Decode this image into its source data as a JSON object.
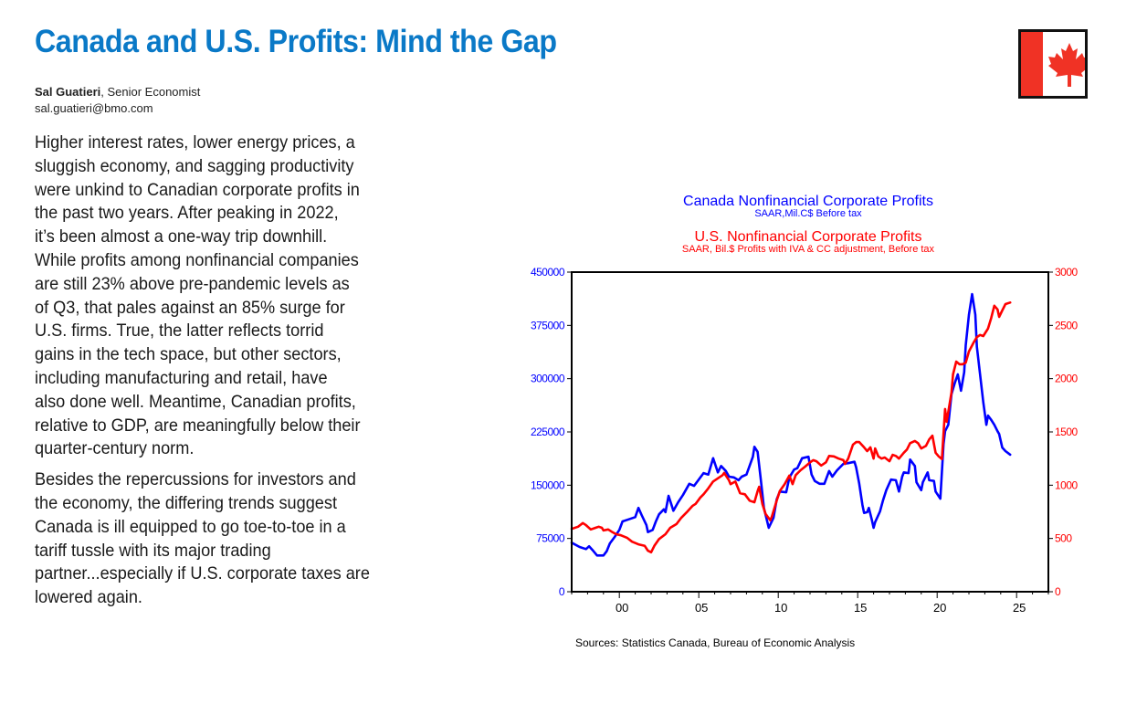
{
  "article": {
    "title": "Canada and U.S. Profits: Mind the Gap",
    "author_name": "Sal Guatieri",
    "author_role": ", Senior Economist",
    "author_email": "sal.guatieri@bmo.com",
    "flag_icon": "canada-flag-icon",
    "paragraphs": [
      [
        "Higher interest rates, lower energy prices, a",
        "sluggish economy, and sagging productivity",
        "were unkind to Canadian corporate profits in",
        "the past two years. After peaking in 2022,",
        "it’s been almost a one-way trip downhill.",
        "While profits among nonfinancial companies",
        "are still 23% above pre-pandemic levels as",
        "of Q3, that pales against an 85% surge for",
        "U.S. firms. True, the latter reflects torrid",
        "gains in the tech space, but other sectors,",
        "including manufacturing and retail, have",
        "also done well. Meantime, Canadian profits,",
        "relative to GDP, are meaningfully below their",
        "quarter-century norm."
      ],
      [
        "Besides the repercussions for investors and",
        "the economy, the differing trends suggest",
        "Canada is ill equipped to go toe-to-toe in a",
        "tariff tussle with its major trading",
        "partner...especially if U.S. corporate taxes are",
        "lowered again."
      ]
    ]
  },
  "chart_data": {
    "type": "line",
    "title": "Canada Nonfinancial Corporate Profits",
    "subtitle": "SAAR,Mil.C$  Before tax",
    "title2": "U.S. Nonfinancial Corporate Profits",
    "subtitle2": "SAAR, Bil.$  Profits with IVA & CC adjustment, Before tax",
    "source": "Sources:  Statistics Canada, Bureau of Economic Analysis",
    "xlim": [
      1997,
      2027
    ],
    "x_ticks": [
      2000,
      2005,
      2010,
      2015,
      2020,
      2025
    ],
    "x_tick_labels": [
      "00",
      "05",
      "10",
      "15",
      "20",
      "25"
    ],
    "y_left": {
      "range": [
        0,
        450000
      ],
      "ticks": [
        0,
        75000,
        150000,
        225000,
        300000,
        375000,
        450000
      ],
      "color": "#0000ff"
    },
    "y_right": {
      "range": [
        0,
        3000
      ],
      "ticks": [
        0,
        500,
        1000,
        1500,
        2000,
        2500,
        3000
      ],
      "color": "#ff0000"
    },
    "grid": false,
    "series": [
      {
        "name": "Canada Nonfinancial Corporate Profits",
        "axis": "left",
        "color": "#0000ff",
        "x": [
          1997.0,
          1997.5,
          1997.9,
          1998.1,
          1998.3,
          1998.6,
          1999.0,
          1999.2,
          1999.4,
          1999.7,
          2000.0,
          2000.2,
          2000.6,
          2001.0,
          2001.2,
          2001.4,
          2001.7,
          2001.8,
          2002.1,
          2002.3,
          2002.5,
          2002.8,
          2002.9,
          2003.1,
          2003.4,
          2003.7,
          2004.0,
          2004.4,
          2004.7,
          2005.0,
          2005.3,
          2005.6,
          2005.9,
          2006.2,
          2006.4,
          2006.7,
          2006.9,
          2007.2,
          2007.5,
          2007.7,
          2008.0,
          2008.4,
          2008.5,
          2008.7,
          2008.9,
          2009.1,
          2009.4,
          2009.7,
          2009.9,
          2010.1,
          2010.5,
          2010.7,
          2011.0,
          2011.2,
          2011.5,
          2011.9,
          2012.1,
          2012.3,
          2012.6,
          2012.9,
          2013.2,
          2013.4,
          2013.7,
          2014.1,
          2014.4,
          2014.8,
          2014.9,
          2015.1,
          2015.3,
          2015.4,
          2015.6,
          2015.7,
          2015.9,
          2016.0,
          2016.1,
          2016.4,
          2016.6,
          2016.8,
          2017.1,
          2017.4,
          2017.6,
          2017.8,
          2017.9,
          2018.2,
          2018.3,
          2018.6,
          2018.7,
          2019.0,
          2019.1,
          2019.4,
          2019.5,
          2019.8,
          2019.9,
          2020.2,
          2020.4,
          2020.5,
          2020.7,
          2020.9,
          2021.1,
          2021.3,
          2021.5,
          2021.7,
          2021.8,
          2022.0,
          2022.2,
          2022.4,
          2022.5,
          2022.7,
          2022.9,
          2023.1,
          2023.2,
          2023.4,
          2023.6,
          2023.8,
          2023.9,
          2024.1,
          2024.3,
          2024.6
        ],
        "values": [
          69000,
          63000,
          60000,
          64000,
          59000,
          51000,
          51000,
          57000,
          68000,
          77000,
          87000,
          99000,
          102000,
          105000,
          118000,
          108000,
          94000,
          84000,
          87000,
          99000,
          109000,
          116000,
          112000,
          135000,
          114000,
          126000,
          136000,
          152000,
          149000,
          158000,
          167000,
          165000,
          188000,
          168000,
          177000,
          170000,
          162000,
          161000,
          157000,
          162000,
          165000,
          190000,
          204000,
          197000,
          158000,
          118000,
          90000,
          104000,
          130000,
          141000,
          140000,
          161000,
          172000,
          174000,
          188000,
          190000,
          165000,
          156000,
          152000,
          152000,
          170000,
          162000,
          171000,
          180000,
          181000,
          183000,
          175000,
          152000,
          122000,
          111000,
          112000,
          118000,
          100000,
          90000,
          98000,
          113000,
          129000,
          143000,
          158000,
          157000,
          141000,
          162000,
          168000,
          167000,
          186000,
          177000,
          154000,
          143000,
          154000,
          168000,
          157000,
          156000,
          141000,
          131000,
          208000,
          226000,
          235000,
          278000,
          293000,
          306000,
          283000,
          309000,
          347000,
          390000,
          419000,
          390000,
          345000,
          306000,
          267000,
          235000,
          248000,
          242000,
          235000,
          226000,
          222000,
          203000,
          198000,
          193000
        ]
      },
      {
        "name": "U.S. Nonfinancial Corporate Profits",
        "axis": "right",
        "color": "#ff0000",
        "x": [
          1997.0,
          1997.4,
          1997.7,
          1997.9,
          1998.2,
          1998.5,
          1998.7,
          1998.9,
          1999.0,
          1999.3,
          1999.5,
          1999.8,
          2000.1,
          2000.5,
          2000.8,
          2001.2,
          2001.6,
          2001.8,
          2002.0,
          2002.2,
          2002.5,
          2002.9,
          2003.2,
          2003.6,
          2003.9,
          2004.3,
          2004.6,
          2004.8,
          2005.1,
          2005.3,
          2005.6,
          2005.9,
          2006.2,
          2006.5,
          2006.6,
          2006.9,
          2007.0,
          2007.3,
          2007.6,
          2007.9,
          2008.2,
          2008.5,
          2008.7,
          2008.8,
          2009.0,
          2009.2,
          2009.5,
          2009.6,
          2009.9,
          2010.1,
          2010.4,
          2010.7,
          2010.9,
          2011.1,
          2011.4,
          2011.7,
          2012.0,
          2012.2,
          2012.4,
          2012.7,
          2013.0,
          2013.2,
          2013.5,
          2013.8,
          2014.1,
          2014.2,
          2014.4,
          2014.7,
          2014.9,
          2015.1,
          2015.4,
          2015.6,
          2015.8,
          2016.0,
          2016.1,
          2016.3,
          2016.5,
          2016.7,
          2017.0,
          2017.2,
          2017.4,
          2017.6,
          2017.9,
          2018.1,
          2018.3,
          2018.6,
          2018.8,
          2019.0,
          2019.3,
          2019.5,
          2019.7,
          2019.9,
          2020.1,
          2020.3,
          2020.5,
          2020.6,
          2020.9,
          2021.0,
          2021.2,
          2021.4,
          2021.6,
          2021.8,
          2022.0,
          2022.3,
          2022.5,
          2022.7,
          2022.9,
          2023.2,
          2023.4,
          2023.6,
          2023.8,
          2023.9,
          2024.1,
          2024.3,
          2024.6
        ],
        "values": [
          590,
          610,
          645,
          625,
          585,
          600,
          610,
          600,
          575,
          585,
          565,
          540,
          530,
          505,
          470,
          445,
          430,
          385,
          370,
          430,
          495,
          540,
          600,
          635,
          695,
          755,
          805,
          825,
          885,
          915,
          970,
          1035,
          1065,
          1095,
          1115,
          1045,
          1010,
          1035,
          925,
          915,
          855,
          840,
          945,
          985,
          825,
          730,
          670,
          705,
          855,
          945,
          1010,
          1090,
          1010,
          1095,
          1140,
          1175,
          1215,
          1235,
          1225,
          1185,
          1215,
          1275,
          1270,
          1250,
          1235,
          1200,
          1250,
          1380,
          1405,
          1405,
          1355,
          1320,
          1355,
          1250,
          1345,
          1270,
          1250,
          1260,
          1225,
          1285,
          1275,
          1250,
          1305,
          1335,
          1395,
          1415,
          1395,
          1345,
          1370,
          1430,
          1465,
          1305,
          1270,
          1245,
          1715,
          1595,
          1870,
          2040,
          2160,
          2135,
          2135,
          2150,
          2255,
          2340,
          2390,
          2410,
          2400,
          2470,
          2570,
          2685,
          2650,
          2580,
          2640,
          2700,
          2715
        ]
      }
    ]
  }
}
